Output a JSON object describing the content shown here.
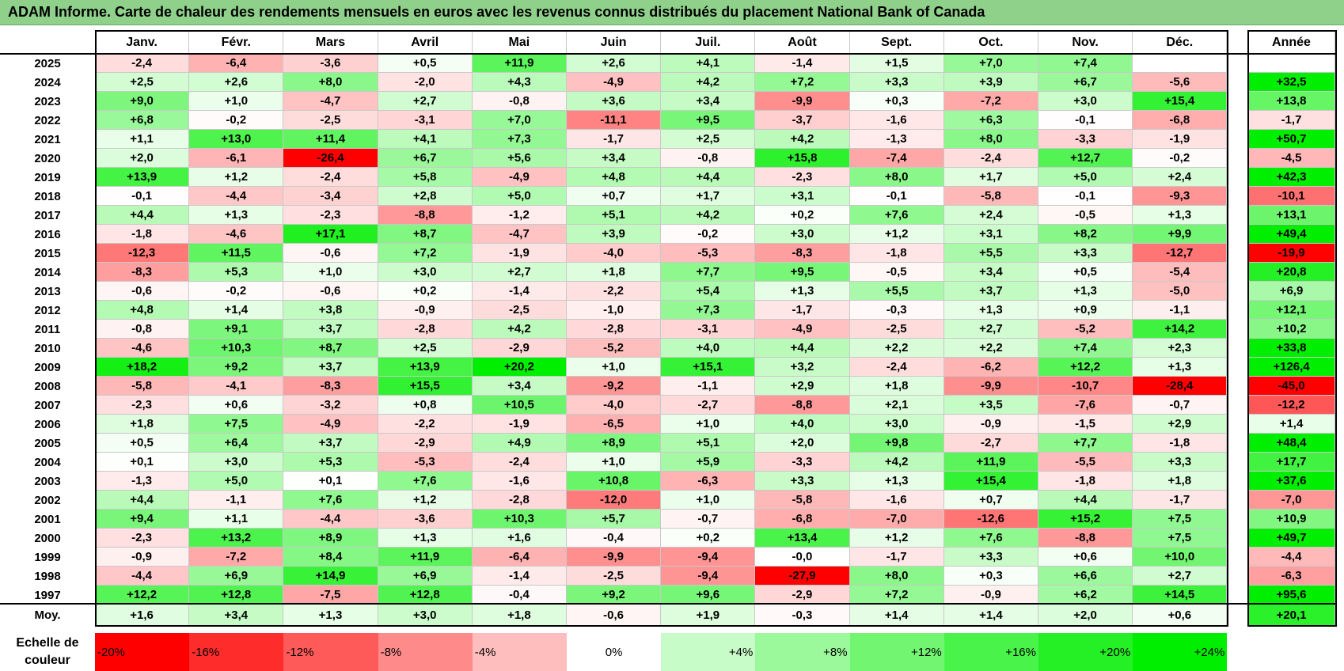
{
  "title": "ADAM Informe. Carte de chaleur des rendements mensuels en euros avec les revenus connus distribués du placement National Bank of Canada",
  "chart_data": {
    "type": "heatmap",
    "title": "ADAM Informe. Carte de chaleur des rendements mensuels en euros avec les revenus connus distribués du placement National Bank of Canada",
    "months": [
      "Janv.",
      "Févr.",
      "Mars",
      "Avril",
      "Mai",
      "Juin",
      "Juil.",
      "Août",
      "Sept.",
      "Oct.",
      "Nov.",
      "Déc."
    ],
    "year_header": "Année",
    "rows": [
      {
        "year": "2025",
        "values": [
          "-2,4",
          "-6,4",
          "-3,6",
          "+0,5",
          "+11,9",
          "+2,6",
          "+4,1",
          "-1,4",
          "+1,5",
          "+7,0",
          "+7,4",
          ""
        ],
        "annual": ""
      },
      {
        "year": "2024",
        "values": [
          "+2,5",
          "+2,6",
          "+8,0",
          "-2,0",
          "+4,3",
          "-4,9",
          "+4,2",
          "+7,2",
          "+3,3",
          "+3,9",
          "+6,7",
          "-5,6"
        ],
        "annual": "+32,5"
      },
      {
        "year": "2023",
        "values": [
          "+9,0",
          "+1,0",
          "-4,7",
          "+2,7",
          "-0,8",
          "+3,6",
          "+3,4",
          "-9,9",
          "+0,3",
          "-7,2",
          "+3,0",
          "+15,4"
        ],
        "annual": "+13,8"
      },
      {
        "year": "2022",
        "values": [
          "+6,8",
          "-0,2",
          "-2,5",
          "-3,1",
          "+7,0",
          "-11,1",
          "+9,5",
          "-3,7",
          "-1,6",
          "+6,3",
          "-0,1",
          "-6,8"
        ],
        "annual": "-1,7"
      },
      {
        "year": "2021",
        "values": [
          "+1,1",
          "+13,0",
          "+11,4",
          "+4,1",
          "+7,3",
          "-1,7",
          "+2,5",
          "+4,2",
          "-1,3",
          "+8,0",
          "-3,3",
          "-1,9"
        ],
        "annual": "+50,7"
      },
      {
        "year": "2020",
        "values": [
          "+2,0",
          "-6,1",
          "-26,4",
          "+6,7",
          "+5,6",
          "+3,4",
          "-0,8",
          "+15,8",
          "-7,4",
          "-2,4",
          "+12,7",
          "-0,2"
        ],
        "annual": "-4,5"
      },
      {
        "year": "2019",
        "values": [
          "+13,9",
          "+1,2",
          "-2,4",
          "+5,8",
          "-4,9",
          "+4,8",
          "+4,4",
          "-2,3",
          "+8,0",
          "+1,7",
          "+5,0",
          "+2,4"
        ],
        "annual": "+42,3"
      },
      {
        "year": "2018",
        "values": [
          "-0,1",
          "-4,4",
          "-3,4",
          "+2,8",
          "+5,0",
          "+0,7",
          "+1,7",
          "+3,1",
          "-0,1",
          "-5,8",
          "-0,1",
          "-9,3"
        ],
        "annual": "-10,1"
      },
      {
        "year": "2017",
        "values": [
          "+4,4",
          "+1,3",
          "-2,3",
          "-8,8",
          "-1,2",
          "+5,1",
          "+4,2",
          "+0,2",
          "+7,6",
          "+2,4",
          "-0,5",
          "+1,3"
        ],
        "annual": "+13,1"
      },
      {
        "year": "2016",
        "values": [
          "-1,8",
          "-4,6",
          "+17,1",
          "+8,7",
          "-4,7",
          "+3,9",
          "-0,2",
          "+3,0",
          "+1,2",
          "+3,1",
          "+8,2",
          "+9,9"
        ],
        "annual": "+49,4"
      },
      {
        "year": "2015",
        "values": [
          "-12,3",
          "+11,5",
          "-0,6",
          "+7,2",
          "-1,9",
          "-4,0",
          "-5,3",
          "-8,3",
          "-1,8",
          "+5,5",
          "+3,3",
          "-12,7"
        ],
        "annual": "-19,9"
      },
      {
        "year": "2014",
        "values": [
          "-8,3",
          "+5,3",
          "+1,0",
          "+3,0",
          "+2,7",
          "+1,8",
          "+7,7",
          "+9,5",
          "-0,5",
          "+3,4",
          "+0,5",
          "-5,4"
        ],
        "annual": "+20,8"
      },
      {
        "year": "2013",
        "values": [
          "-0,6",
          "-0,2",
          "-0,6",
          "+0,2",
          "-1,4",
          "-2,2",
          "+5,4",
          "+1,3",
          "+5,5",
          "+3,7",
          "+1,3",
          "-5,0"
        ],
        "annual": "+6,9"
      },
      {
        "year": "2012",
        "values": [
          "+4,8",
          "+1,4",
          "+3,8",
          "-0,9",
          "-2,5",
          "-1,0",
          "+7,3",
          "-1,7",
          "-0,3",
          "+1,3",
          "+0,9",
          "-1,1"
        ],
        "annual": "+12,1"
      },
      {
        "year": "2011",
        "values": [
          "-0,8",
          "+9,1",
          "+3,7",
          "-2,8",
          "+4,2",
          "-2,8",
          "-3,1",
          "-4,9",
          "-2,5",
          "+2,7",
          "-5,2",
          "+14,2"
        ],
        "annual": "+10,2"
      },
      {
        "year": "2010",
        "values": [
          "-4,6",
          "+10,3",
          "+8,7",
          "+2,5",
          "-2,9",
          "-5,2",
          "+4,0",
          "+4,4",
          "+2,2",
          "+2,2",
          "+7,4",
          "+2,3"
        ],
        "annual": "+33,8"
      },
      {
        "year": "2009",
        "values": [
          "+18,2",
          "+9,2",
          "+3,7",
          "+13,9",
          "+20,2",
          "+1,0",
          "+15,1",
          "+3,2",
          "-2,4",
          "-6,2",
          "+12,2",
          "+1,3"
        ],
        "annual": "+126,4"
      },
      {
        "year": "2008",
        "values": [
          "-5,8",
          "-4,1",
          "-8,3",
          "+15,5",
          "+3,4",
          "-9,2",
          "-1,1",
          "+2,9",
          "+1,8",
          "-9,9",
          "-10,7",
          "-28,4"
        ],
        "annual": "-45,0"
      },
      {
        "year": "2007",
        "values": [
          "-2,3",
          "+0,6",
          "-3,2",
          "+0,8",
          "+10,5",
          "-4,0",
          "-2,7",
          "-8,8",
          "+2,1",
          "+3,5",
          "-7,6",
          "-0,7"
        ],
        "annual": "-12,2"
      },
      {
        "year": "2006",
        "values": [
          "+1,8",
          "+7,5",
          "-4,9",
          "-2,2",
          "-1,9",
          "-6,5",
          "+1,0",
          "+4,0",
          "+3,0",
          "-0,9",
          "-1,5",
          "+2,9"
        ],
        "annual": "+1,4"
      },
      {
        "year": "2005",
        "values": [
          "+0,5",
          "+6,4",
          "+3,7",
          "-2,9",
          "+4,9",
          "+8,9",
          "+5,1",
          "+2,0",
          "+9,8",
          "-2,7",
          "+7,7",
          "-1,8"
        ],
        "annual": "+48,4"
      },
      {
        "year": "2004",
        "values": [
          "+0,1",
          "+3,0",
          "+5,3",
          "-5,3",
          "-2,4",
          "+1,0",
          "+5,9",
          "-3,3",
          "+4,2",
          "+11,9",
          "-5,5",
          "+3,3"
        ],
        "annual": "+17,7"
      },
      {
        "year": "2003",
        "values": [
          "-1,3",
          "+5,0",
          "+0,1",
          "+7,6",
          "-1,6",
          "+10,8",
          "-6,3",
          "+3,3",
          "+1,3",
          "+15,4",
          "-1,8",
          "+1,8"
        ],
        "annual": "+37,6"
      },
      {
        "year": "2002",
        "values": [
          "+4,4",
          "-1,1",
          "+7,6",
          "+1,2",
          "-2,8",
          "-12,0",
          "+1,0",
          "-5,8",
          "-1,6",
          "+0,7",
          "+4,4",
          "-1,7"
        ],
        "annual": "-7,0"
      },
      {
        "year": "2001",
        "values": [
          "+9,4",
          "+1,1",
          "-4,4",
          "-3,6",
          "+10,3",
          "+5,7",
          "-0,7",
          "-6,8",
          "-7,0",
          "-12,6",
          "+15,2",
          "+7,5"
        ],
        "annual": "+10,9"
      },
      {
        "year": "2000",
        "values": [
          "-2,3",
          "+13,2",
          "+8,9",
          "+1,3",
          "+1,6",
          "-0,4",
          "+0,2",
          "+13,4",
          "+1,2",
          "+7,6",
          "-8,8",
          "+7,5"
        ],
        "annual": "+49,7"
      },
      {
        "year": "1999",
        "values": [
          "-0,9",
          "-7,2",
          "+8,4",
          "+11,9",
          "-6,4",
          "-9,9",
          "-9,4",
          "-0,0",
          "-1,7",
          "+3,3",
          "+0,6",
          "+10,0"
        ],
        "annual": "-4,4"
      },
      {
        "year": "1998",
        "values": [
          "-4,4",
          "+6,9",
          "+14,9",
          "+6,9",
          "-1,4",
          "-2,5",
          "-9,4",
          "-27,9",
          "+8,0",
          "+0,3",
          "+6,6",
          "+2,7"
        ],
        "annual": "-6,3"
      },
      {
        "year": "1997",
        "values": [
          "+12,2",
          "+12,8",
          "-7,5",
          "+12,8",
          "-0,4",
          "+9,2",
          "+9,6",
          "-2,9",
          "+7,2",
          "-0,9",
          "+6,2",
          "+14,5"
        ],
        "annual": "+95,6"
      }
    ],
    "average": {
      "label": "Moy.",
      "values": [
        "+1,6",
        "+3,4",
        "+1,3",
        "+3,0",
        "+1,8",
        "-0,6",
        "+1,9",
        "-0,3",
        "+1,4",
        "+1,4",
        "+2,0",
        "+0,6"
      ],
      "annual": "+20,1"
    },
    "color_scale": {
      "label": "Echelle de couleur",
      "stops": [
        {
          "label": "-20%",
          "value": -20
        },
        {
          "label": "-16%",
          "value": -16
        },
        {
          "label": "-12%",
          "value": -12
        },
        {
          "label": "-8%",
          "value": -8
        },
        {
          "label": "-4%",
          "value": -4
        },
        {
          "label": "0%",
          "value": 0
        },
        {
          "label": "+4%",
          "value": 4
        },
        {
          "label": "+8%",
          "value": 8
        },
        {
          "label": "+12%",
          "value": 12
        },
        {
          "label": "+16%",
          "value": 16
        },
        {
          "label": "+20%",
          "value": 20
        },
        {
          "label": "+24%",
          "value": 24
        }
      ]
    },
    "colors": {
      "negative": "#ff0000",
      "positive": "#00ee00",
      "neutral": "#ffffff"
    }
  }
}
